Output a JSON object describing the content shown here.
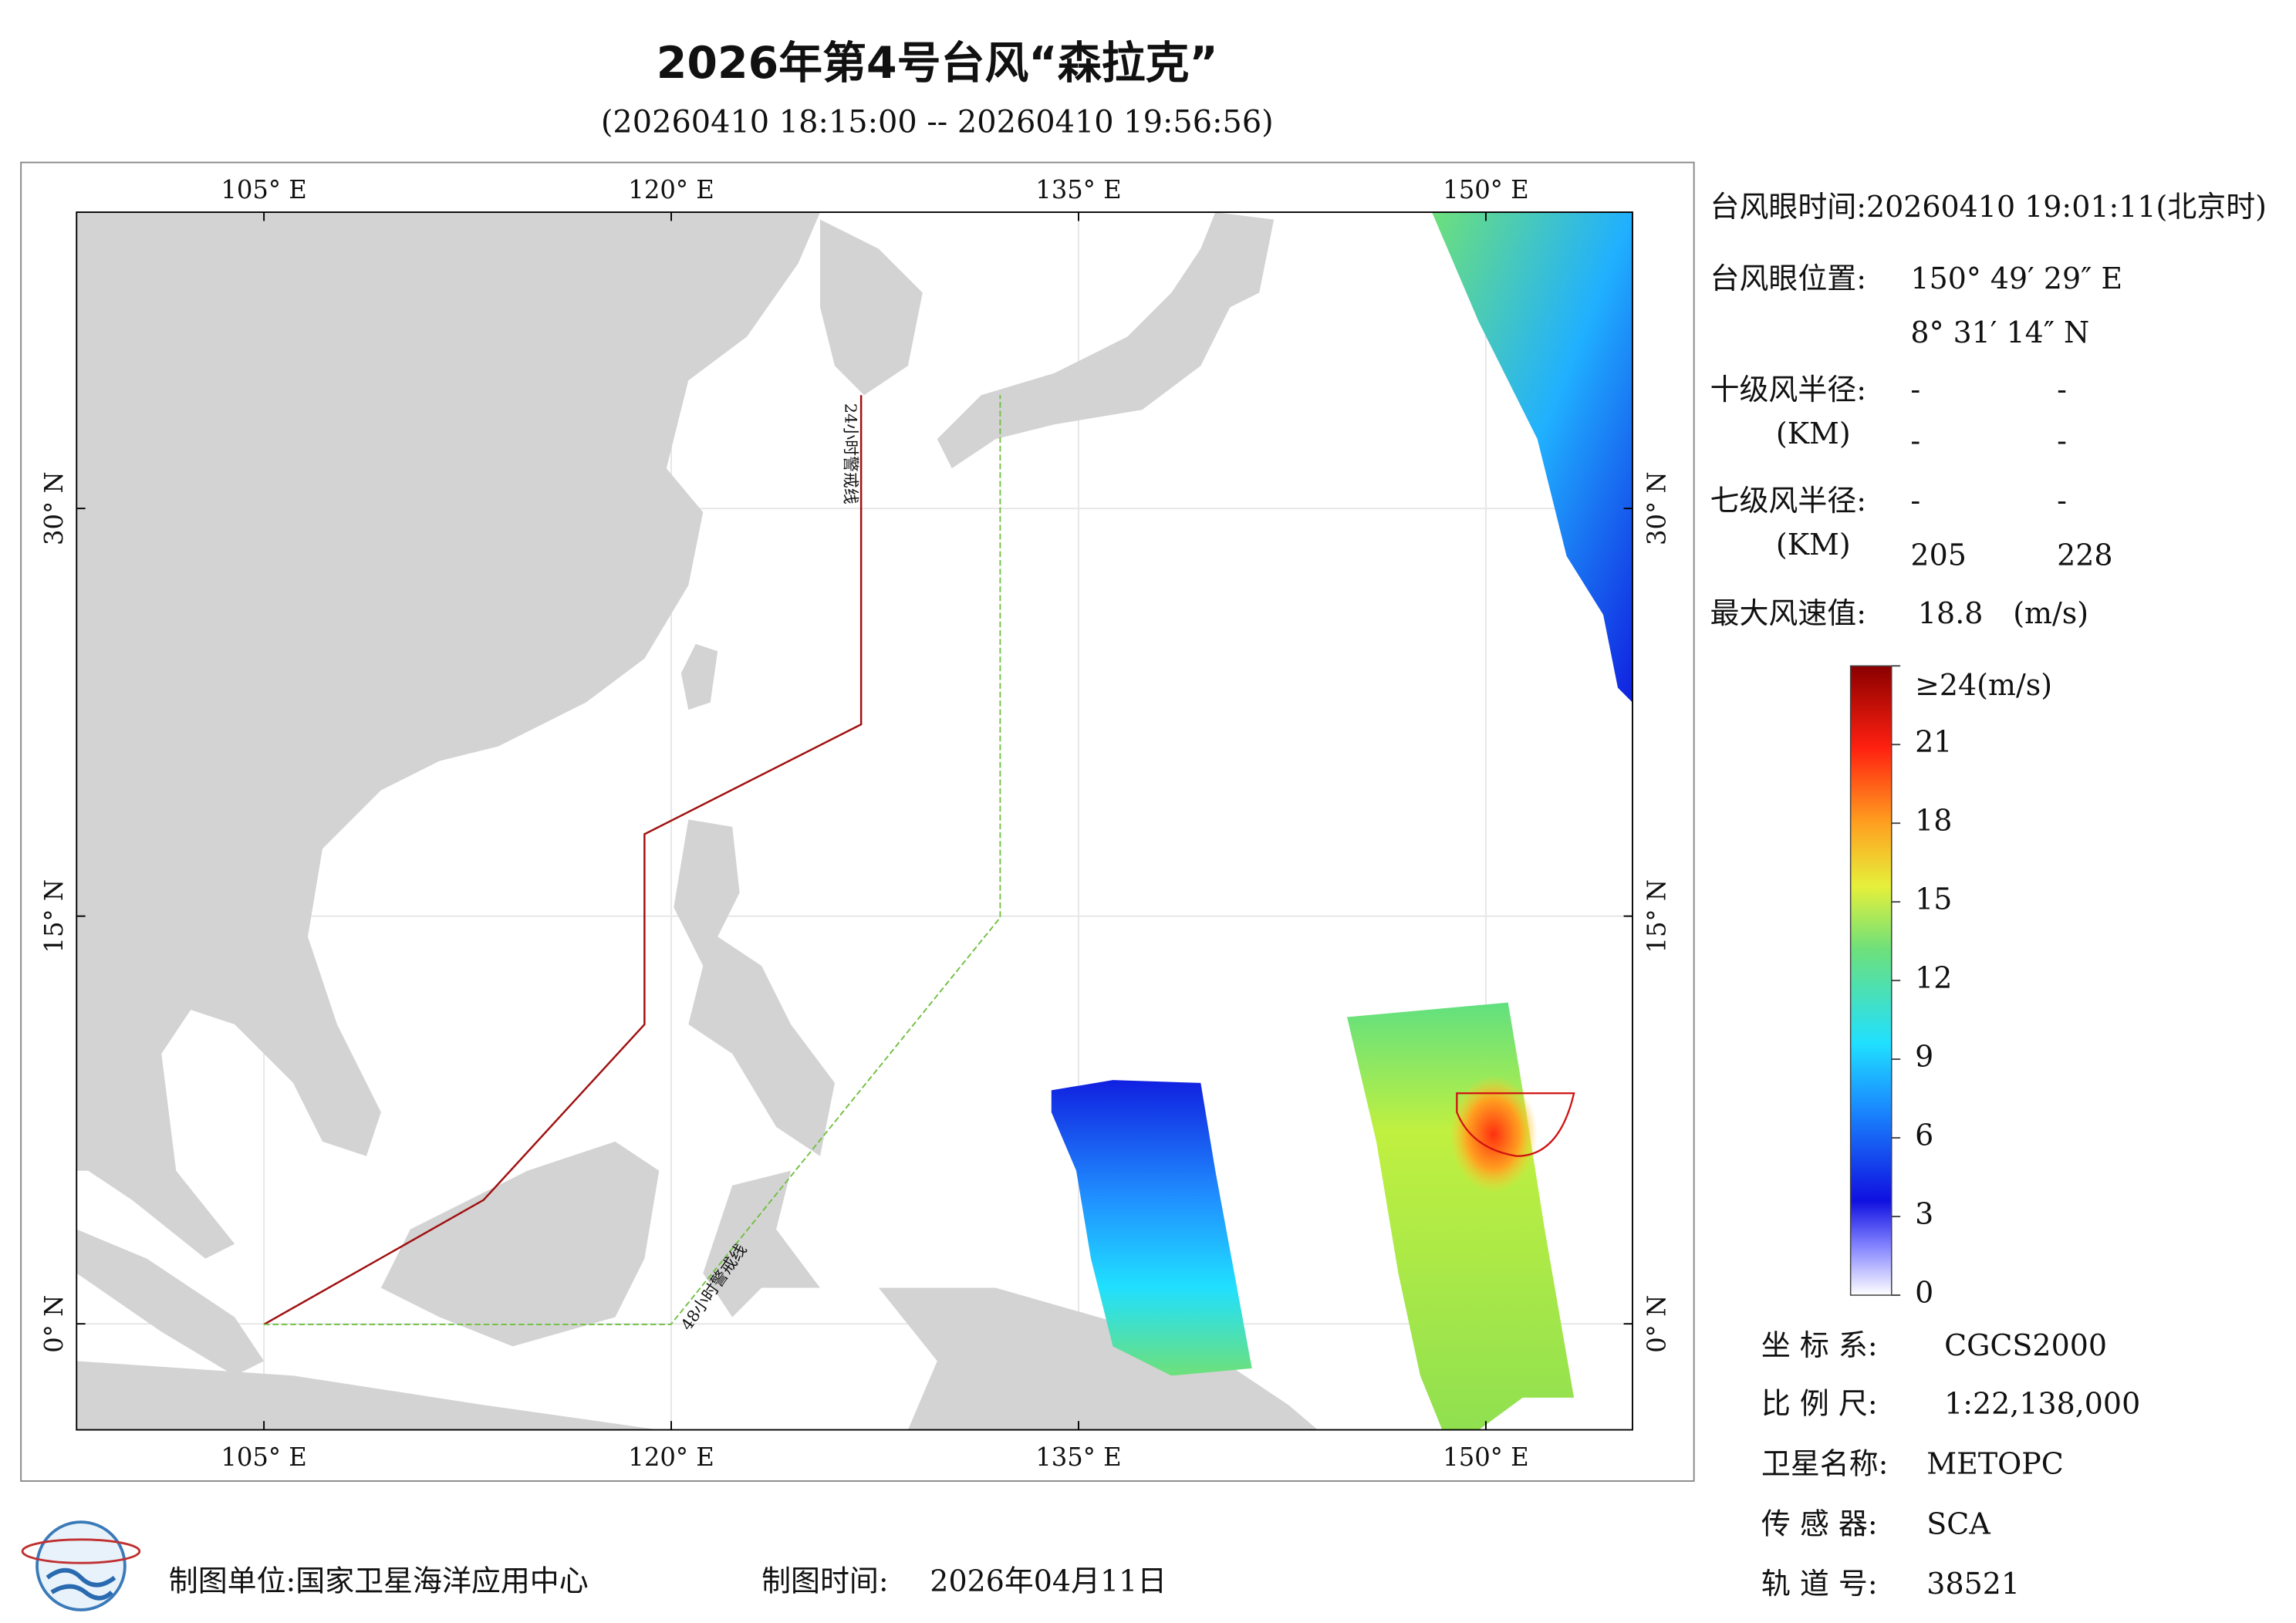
{
  "header": {
    "title": "2026年第4号台风“森拉克”",
    "subtitle": "(20260410 18:15:00 -- 20260410 19:56:56)"
  },
  "map": {
    "xlim": [
      98.1,
      155.4
    ],
    "ylim": [
      -3.9,
      40.9
    ],
    "xticks": [
      {
        "value": 105,
        "label": "105° E"
      },
      {
        "value": 120,
        "label": "120° E"
      },
      {
        "value": 135,
        "label": "135° E"
      },
      {
        "value": 150,
        "label": "150° E"
      }
    ],
    "yticks": [
      {
        "value": 0,
        "label": "0° N"
      },
      {
        "value": 15,
        "label": "15° N"
      },
      {
        "value": 30,
        "label": "30° N"
      }
    ],
    "line24": "24小时警戒线",
    "line48": "48小时警戒线"
  },
  "info": {
    "eye_time": "台风眼时间:20260410 19:01:11(北京时)",
    "eye_pos_label": "台风眼位置:",
    "eye_lon": "150° 49′ 29″ E",
    "eye_lat": "8° 31′ 14″ N",
    "r10": {
      "label": "十级风半径:",
      "unit": "(KM)",
      "row1": [
        "-",
        "-"
      ],
      "row2": [
        "-",
        "-"
      ]
    },
    "r7": {
      "label": "七级风半径:",
      "unit": "(KM)",
      "row1": [
        "-",
        "-"
      ],
      "row2": [
        205,
        228
      ]
    },
    "max_label": "最大风速值:",
    "max_value": 18.8,
    "max_unit": "(m/s)"
  },
  "colorbar": {
    "ylim": [
      0,
      24
    ],
    "yticks": [
      0,
      3,
      6,
      9,
      12,
      15,
      18,
      21,
      {
        "value": 24,
        "label": "≥24(m/s)"
      }
    ]
  },
  "meta": {
    "crs_label": "坐 标 系:",
    "crs": "CGCS2000",
    "scale_label": "比 例 尺:",
    "scale": "1:22,138,000",
    "sat_label": "卫星名称:",
    "sat": "METOPC",
    "sensor_label": "传 感 器:",
    "sensor": "SCA",
    "orbit_label": "轨 道 号:",
    "orbit": 38521
  },
  "footer": {
    "unit": "制图单位:国家卫星海洋应用中心",
    "time_label": "制图时间:",
    "time": "2026年04月11日"
  }
}
